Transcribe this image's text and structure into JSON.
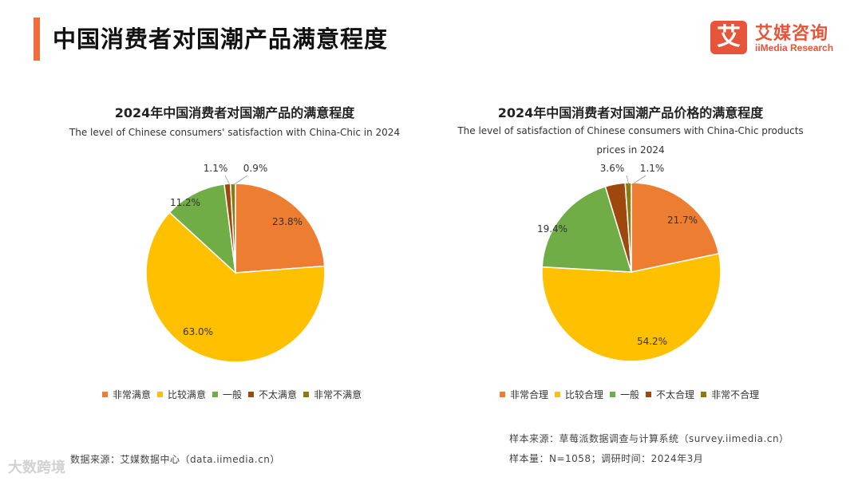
{
  "page": {
    "title": "中国消费者对国潮产品满意程度",
    "logo_cn": "艾媒咨询",
    "logo_mark": "艾",
    "logo_en": "iiMedia Research",
    "source_left": "数据来源：艾媒数据中心（data.iimedia.cn）",
    "source_right": "样本来源：草莓派数据调查与计算系统（survey.iimedia.cn）",
    "sample_note": "样本量：N=1058；调研时间：2024年3月",
    "watermark": "大数跨境"
  },
  "colors": [
    "#ED7D31",
    "#FFC000",
    "#70AD47",
    "#9E480E",
    "#8B7A10"
  ],
  "chart_data": [
    {
      "type": "pie",
      "title": "2024年中国消费者对国潮产品的满意程度",
      "subtitle": "The level of Chinese consumers' satisfaction with China-Chic in 2024",
      "categories": [
        "非常满意",
        "比较满意",
        "一般",
        "不太满意",
        "非常不满意"
      ],
      "values": [
        23.8,
        63.0,
        11.2,
        1.1,
        0.9
      ],
      "data_labels": [
        "23.8%",
        "63.0%",
        "11.2%",
        "1.1%",
        "0.9%"
      ],
      "legend": "bottom"
    },
    {
      "type": "pie",
      "title": "2024年中国消费者对国潮产品价格的满意程度",
      "subtitle": "The level of satisfaction of Chinese consumers with China-Chic products prices in 2024",
      "categories": [
        "非常合理",
        "比较合理",
        "一般",
        "不太合理",
        "非常不合理"
      ],
      "values": [
        21.7,
        54.2,
        19.4,
        3.6,
        1.1
      ],
      "data_labels": [
        "21.7%",
        "54.2%",
        "19.4%",
        "3.6%",
        "1.1%"
      ],
      "legend": "bottom"
    }
  ]
}
